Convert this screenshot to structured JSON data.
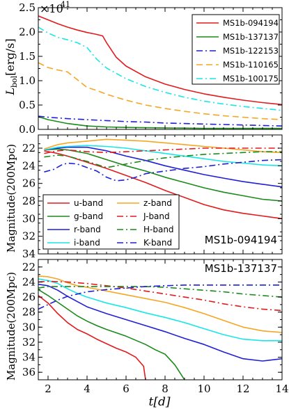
{
  "chart_data": [
    {
      "type": "line",
      "panel": "top",
      "multiplier_label": "×10",
      "multiplier_exp": "41",
      "ylabel_main": "L",
      "ylabel_sub": "bol",
      "ylabel_unit": "[erg/s]",
      "xlim": [
        1.5,
        14
      ],
      "ylim": [
        0,
        2.5
      ],
      "yticks": [
        "0.0",
        "0.5",
        "1.0",
        "1.5",
        "2.0",
        "2.5"
      ],
      "legend_position": "top-right",
      "series": [
        {
          "name": "MS1b-094194",
          "color": "#e31a1c",
          "dash": "solid",
          "x": [
            1.5,
            2.0,
            2.5,
            3.0,
            3.5,
            4.0,
            4.5,
            4.8,
            5.0,
            5.5,
            6,
            7,
            8,
            9,
            10,
            11,
            12,
            13,
            14
          ],
          "y": [
            2.33,
            2.25,
            2.17,
            2.1,
            2.04,
            1.99,
            1.95,
            1.92,
            1.78,
            1.48,
            1.3,
            1.08,
            0.93,
            0.82,
            0.73,
            0.66,
            0.6,
            0.55,
            0.51
          ]
        },
        {
          "name": "MS1b-137137",
          "color": "#1a8a1a",
          "dash": "solid",
          "x": [
            1.5,
            2,
            3,
            4,
            5,
            6,
            8,
            10,
            12,
            14
          ],
          "y": [
            0.26,
            0.2,
            0.12,
            0.07,
            0.05,
            0.04,
            0.03,
            0.02,
            0.02,
            0.02
          ]
        },
        {
          "name": "MS1b-122153",
          "color": "#1f1fd6",
          "dash": "dashdot",
          "x": [
            1.5,
            2,
            3,
            4,
            5,
            6,
            7,
            8,
            9,
            10,
            11,
            12,
            13,
            14
          ],
          "y": [
            0.27,
            0.25,
            0.22,
            0.2,
            0.18,
            0.16,
            0.15,
            0.13,
            0.12,
            0.11,
            0.1,
            0.09,
            0.08,
            0.07
          ]
        },
        {
          "name": "MS1b-110165",
          "color": "#f5a623",
          "dash": "dashed",
          "x": [
            1.5,
            2.0,
            2.5,
            3.0,
            3.5,
            4.0,
            4.5,
            5,
            6,
            7,
            8,
            9,
            10,
            11,
            12,
            13,
            14
          ],
          "y": [
            1.37,
            1.27,
            1.22,
            1.18,
            1.02,
            0.86,
            0.8,
            0.72,
            0.6,
            0.5,
            0.43,
            0.37,
            0.32,
            0.28,
            0.25,
            0.22,
            0.2
          ]
        },
        {
          "name": "MS1b-100175",
          "color": "#19e6e6",
          "dash": "dashdot",
          "x": [
            1.5,
            2.0,
            2.5,
            3.0,
            3.5,
            4.0,
            4.5,
            5,
            6,
            7,
            8,
            9,
            10,
            11,
            12,
            13,
            14
          ],
          "y": [
            2.1,
            1.98,
            1.89,
            1.84,
            1.78,
            1.68,
            1.44,
            1.26,
            1.04,
            0.88,
            0.76,
            0.66,
            0.58,
            0.52,
            0.47,
            0.43,
            0.39
          ]
        }
      ]
    },
    {
      "type": "line",
      "panel": "middle",
      "ylabel": "Magnitude(200Mpc)",
      "annotation": "MS1b-094194",
      "xlim": [
        1.5,
        14
      ],
      "ylim": [
        34,
        20.5
      ],
      "inverted": true,
      "yticks": [
        "22",
        "24",
        "26",
        "28",
        "30",
        "32",
        "34"
      ],
      "legend_position": "lower-left",
      "series": [
        {
          "name": "u-band",
          "color": "#e31a1c",
          "dash": "solid",
          "x": [
            1.8,
            2.5,
            3,
            4,
            5,
            6,
            7,
            8,
            9,
            10,
            11,
            12,
            13,
            14
          ],
          "y": [
            22.3,
            22.6,
            22.9,
            23.6,
            24.3,
            25.1,
            25.9,
            26.8,
            27.6,
            28.4,
            29.0,
            29.4,
            29.7,
            30.0
          ]
        },
        {
          "name": "g-band",
          "color": "#1a8a1a",
          "dash": "solid",
          "x": [
            1.8,
            2.5,
            3,
            4,
            5,
            6,
            7,
            8,
            9,
            10,
            11,
            12,
            13,
            14
          ],
          "y": [
            22.2,
            22.1,
            22.2,
            22.6,
            23.3,
            24.0,
            24.6,
            25.3,
            25.9,
            26.5,
            27.0,
            27.4,
            27.8,
            28.0
          ]
        },
        {
          "name": "r-band",
          "color": "#1f1fd6",
          "dash": "solid",
          "x": [
            1.8,
            2.5,
            3,
            4,
            5,
            6,
            7,
            8,
            9,
            10,
            11,
            12,
            13,
            14
          ],
          "y": [
            22.2,
            22.0,
            21.9,
            21.9,
            22.3,
            22.9,
            23.4,
            24.0,
            24.5,
            25.0,
            25.4,
            25.8,
            26.1,
            26.4
          ]
        },
        {
          "name": "i-band",
          "color": "#19e6e6",
          "dash": "solid",
          "x": [
            1.8,
            2.5,
            3,
            4,
            5,
            6,
            7,
            8,
            9,
            10,
            11,
            12,
            13,
            14
          ],
          "y": [
            22.2,
            21.9,
            21.8,
            21.7,
            21.8,
            22.0,
            22.3,
            22.6,
            22.9,
            23.2,
            23.5,
            23.7,
            23.9,
            24.0
          ]
        },
        {
          "name": "z-band",
          "color": "#f5a623",
          "dash": "solid",
          "x": [
            1.8,
            2.5,
            3,
            4,
            5,
            6,
            7,
            8,
            9,
            10,
            11,
            12,
            13,
            14
          ],
          "y": [
            22.1,
            21.6,
            21.4,
            21.2,
            21.0,
            21.1,
            21.2,
            21.4,
            21.6,
            21.8,
            22.0,
            22.2,
            22.4,
            22.5
          ]
        },
        {
          "name": "J-band",
          "color": "#e31a1c",
          "dash": "dashdot",
          "x": [
            1.8,
            2.5,
            3,
            4,
            5,
            6,
            7,
            8,
            9,
            10,
            11,
            12,
            13,
            14
          ],
          "y": [
            22.6,
            22.3,
            22.2,
            22.4,
            22.5,
            22.4,
            22.3,
            22.2,
            22.1,
            22.0,
            22.0,
            22.0,
            22.0,
            22.0
          ]
        },
        {
          "name": "H-band",
          "color": "#1a8a1a",
          "dash": "dashdot",
          "x": [
            1.8,
            2.5,
            3,
            4,
            5,
            6,
            7,
            8,
            9,
            10,
            11,
            12,
            13,
            14
          ],
          "y": [
            23.0,
            22.8,
            22.9,
            23.5,
            24.2,
            23.8,
            23.4,
            23.1,
            22.9,
            22.7,
            22.6,
            22.5,
            22.4,
            22.4
          ]
        },
        {
          "name": "K-band",
          "color": "#1f1fd6",
          "dash": "dashdot",
          "x": [
            1.8,
            2.3,
            2.7,
            3,
            3.5,
            4,
            4.5,
            5,
            5.5,
            6,
            6.5,
            7,
            8,
            9,
            10,
            11,
            12,
            13,
            14
          ],
          "y": [
            24.7,
            24.4,
            23.9,
            23.7,
            23.8,
            24.2,
            24.6,
            25.3,
            25.7,
            25.6,
            25.3,
            24.9,
            24.6,
            24.3,
            24.1,
            23.8,
            23.6,
            23.4,
            23.3
          ]
        }
      ]
    },
    {
      "type": "line",
      "panel": "bottom",
      "ylabel": "Magnitude(200Mpc)",
      "xlabel": "t[d]",
      "annotation": "MS1b-137137",
      "xlim": [
        1.5,
        14
      ],
      "ylim": [
        37,
        21
      ],
      "inverted": true,
      "yticks": [
        "22",
        "24",
        "26",
        "28",
        "30",
        "32",
        "34",
        "36"
      ],
      "xticks": [
        "2",
        "4",
        "6",
        "8",
        "10",
        "12",
        "14"
      ],
      "series": [
        {
          "name": "u-band",
          "color": "#e31a1c",
          "dash": "solid",
          "x": [
            1.5,
            2,
            2.5,
            3,
            3.5,
            4,
            4.5,
            5,
            5.5,
            6,
            6.5,
            6.9,
            7.0
          ],
          "y": [
            25.8,
            26.8,
            28.2,
            29.4,
            30.3,
            30.9,
            31.6,
            32.2,
            32.8,
            33.3,
            34.0,
            35.2,
            37.0
          ]
        },
        {
          "name": "g-band",
          "color": "#1a8a1a",
          "dash": "solid",
          "x": [
            1.5,
            2,
            2.5,
            3,
            3.5,
            4,
            4.5,
            5,
            6,
            7,
            7.5,
            8,
            8.5,
            9.0
          ],
          "y": [
            25.0,
            25.8,
            26.7,
            27.6,
            28.5,
            29.2,
            29.8,
            30.3,
            31.2,
            32.3,
            33.0,
            33.6,
            35.0,
            37.0
          ]
        },
        {
          "name": "r-band",
          "color": "#1f1fd6",
          "dash": "solid",
          "x": [
            1.5,
            2,
            2.5,
            3,
            3.5,
            4,
            5,
            6,
            7,
            8,
            9,
            10,
            11,
            12,
            13,
            14
          ],
          "y": [
            24.3,
            24.5,
            25.1,
            25.9,
            26.6,
            27.3,
            28.2,
            29.0,
            29.8,
            30.6,
            31.5,
            32.3,
            33.3,
            34.2,
            34.5,
            34.2
          ]
        },
        {
          "name": "i-band",
          "color": "#19e6e6",
          "dash": "solid",
          "x": [
            1.5,
            2,
            2.5,
            3,
            3.5,
            4,
            5,
            6,
            7,
            8,
            9,
            10,
            11,
            12,
            13,
            14
          ],
          "y": [
            23.6,
            23.8,
            24.2,
            24.9,
            25.5,
            26.0,
            26.8,
            27.4,
            28.1,
            28.7,
            29.4,
            30.2,
            31.0,
            31.6,
            31.8,
            31.8
          ]
        },
        {
          "name": "z-band",
          "color": "#f5a623",
          "dash": "solid",
          "x": [
            1.5,
            2,
            2.5,
            3,
            3.5,
            4,
            5,
            6,
            7,
            8,
            9,
            10,
            11,
            12,
            13,
            14
          ],
          "y": [
            23.2,
            23.3,
            23.6,
            24.1,
            24.5,
            24.7,
            25.2,
            25.7,
            26.2,
            26.7,
            27.4,
            28.2,
            29.1,
            30.0,
            30.5,
            30.7
          ]
        },
        {
          "name": "J-band",
          "color": "#e31a1c",
          "dash": "dashdot",
          "x": [
            1.5,
            2,
            3,
            4,
            5,
            6,
            7,
            8,
            9,
            10,
            11,
            12,
            13,
            14
          ],
          "y": [
            24.0,
            23.9,
            24.0,
            24.2,
            24.5,
            24.8,
            25.2,
            25.6,
            26.0,
            26.4,
            26.9,
            27.3,
            27.6,
            27.8
          ]
        },
        {
          "name": "H-band",
          "color": "#1a8a1a",
          "dash": "dashdot",
          "x": [
            1.5,
            2,
            3,
            4,
            5,
            6,
            7,
            8,
            9,
            10,
            11,
            12,
            13,
            14
          ],
          "y": [
            24.8,
            24.6,
            24.6,
            24.6,
            24.6,
            24.6,
            24.6,
            24.7,
            24.9,
            25.1,
            25.3,
            25.6,
            25.8,
            26.0
          ]
        },
        {
          "name": "K-band",
          "color": "#1f1fd6",
          "dash": "dashdot",
          "x": [
            1.5,
            2,
            2.5,
            3,
            4,
            5,
            6,
            7,
            8,
            9,
            10,
            11,
            12,
            13,
            14
          ],
          "y": [
            27.6,
            27.0,
            26.4,
            25.9,
            25.3,
            25.0,
            24.8,
            24.6,
            24.5,
            24.4,
            24.4,
            24.4,
            24.4,
            24.4,
            24.4
          ]
        }
      ]
    }
  ]
}
